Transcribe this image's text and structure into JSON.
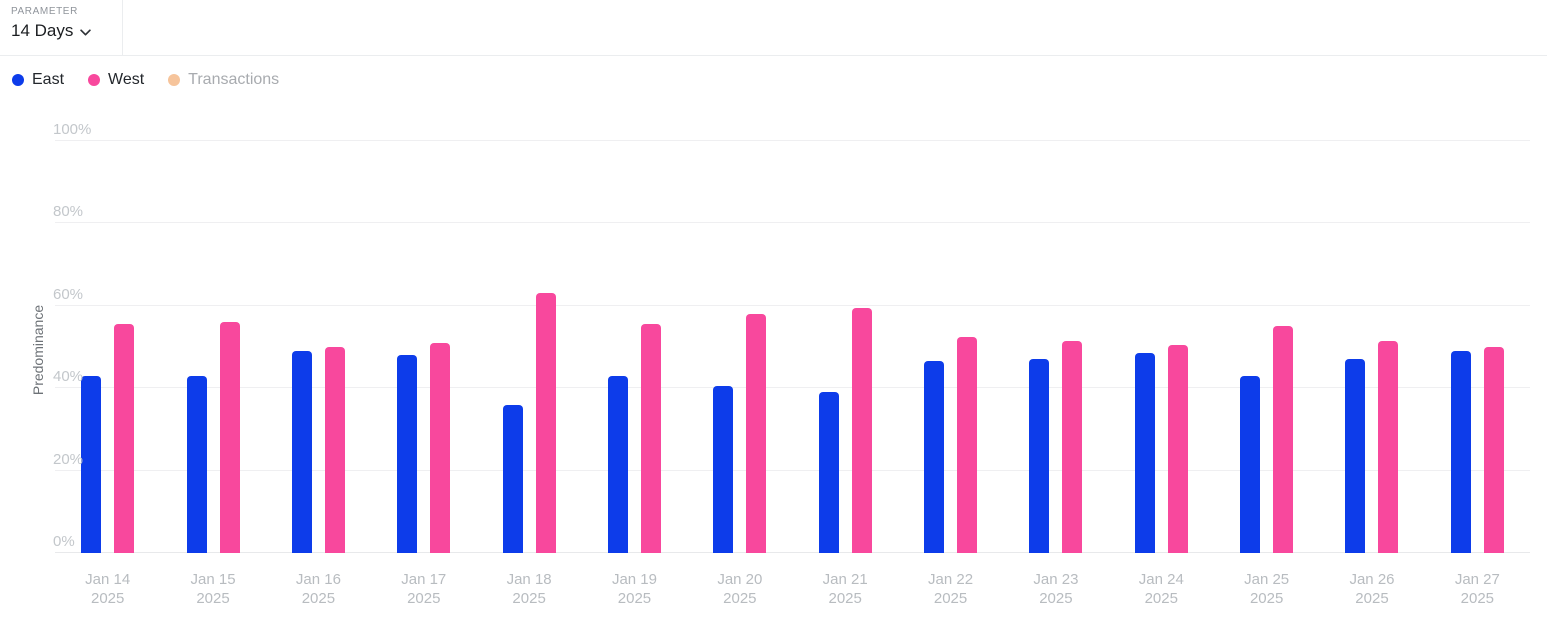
{
  "parameter": {
    "label": "PARAMETER",
    "value": "14 Days"
  },
  "chart_data": {
    "type": "bar",
    "title": "",
    "xlabel": "",
    "ylabel": "Predominance",
    "ylim": [
      0,
      100
    ],
    "yticks": [
      0,
      20,
      40,
      60,
      80,
      100
    ],
    "ytick_format": "percent",
    "grid": true,
    "legend_position": "top-left",
    "categories": [
      {
        "label": "Jan 14",
        "year": "2025"
      },
      {
        "label": "Jan 15",
        "year": "2025"
      },
      {
        "label": "Jan 16",
        "year": "2025"
      },
      {
        "label": "Jan 17",
        "year": "2025"
      },
      {
        "label": "Jan 18",
        "year": "2025"
      },
      {
        "label": "Jan 19",
        "year": "2025"
      },
      {
        "label": "Jan 20",
        "year": "2025"
      },
      {
        "label": "Jan 21",
        "year": "2025"
      },
      {
        "label": "Jan 22",
        "year": "2025"
      },
      {
        "label": "Jan 23",
        "year": "2025"
      },
      {
        "label": "Jan 24",
        "year": "2025"
      },
      {
        "label": "Jan 25",
        "year": "2025"
      },
      {
        "label": "Jan 26",
        "year": "2025"
      },
      {
        "label": "Jan 27",
        "year": "2025"
      }
    ],
    "series": [
      {
        "name": "East",
        "color": "#0d3cea",
        "active": true,
        "values": [
          43,
          43,
          49,
          48,
          36,
          43,
          40.5,
          39,
          46.5,
          47,
          48.5,
          43,
          47,
          49
        ]
      },
      {
        "name": "West",
        "color": "#f8489d",
        "active": true,
        "values": [
          55.5,
          56,
          50,
          51,
          63,
          55.5,
          58,
          59.5,
          52.5,
          51.5,
          50.5,
          55,
          51.5,
          50
        ]
      },
      {
        "name": "Transactions",
        "color": "#f6c49b",
        "active": false,
        "values": null
      }
    ]
  },
  "colors": {
    "east": "#0d3cea",
    "west": "#f8489d",
    "transactions": "#f6c49b",
    "gridline": "#efeff1",
    "tick_text": "#c3c7cb",
    "axis_text": "#b8bcc0",
    "legend_text": "#23272c",
    "legend_text_inactive": "#a8abaf"
  }
}
